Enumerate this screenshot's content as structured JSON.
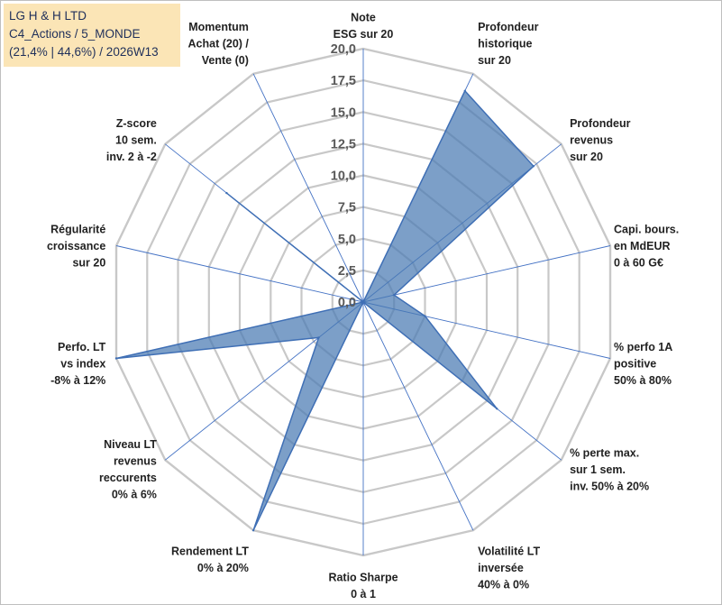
{
  "info_box": {
    "line1": "LG H & H LTD",
    "line2": "C4_Actions / 5_MONDE",
    "line3": "(21,4% | 44,6%) / 2026W13"
  },
  "colors": {
    "area_fill": "#4a7ab3",
    "area_stroke": "#3f6fb5",
    "grid": "#c8c8c8",
    "spoke": "#4472c4"
  },
  "chart_data": {
    "type": "radar",
    "title": "",
    "rlim": [
      0,
      20
    ],
    "tick_values": [
      0,
      2.5,
      5,
      7.5,
      10,
      12.5,
      15,
      17.5,
      20
    ],
    "tick_labels": [
      "0,0",
      "2,5",
      "5,0",
      "7,5",
      "10,0",
      "12,5",
      "15,0",
      "17,5",
      "20,0"
    ],
    "axes": [
      {
        "label": [
          "Note",
          "ESG sur 20"
        ],
        "value": 0
      },
      {
        "label": [
          "Profondeur",
          "historique",
          "sur 20"
        ],
        "value": 18.5
      },
      {
        "label": [
          "Profondeur",
          "revenus",
          "sur 20"
        ],
        "value": 17.2
      },
      {
        "label": [
          "Capi. bours.",
          "en MdEUR",
          "0 à 60 G€"
        ],
        "value": 2.5
      },
      {
        "label": [
          "% perfo 1A",
          "positive",
          "50% à 80%"
        ],
        "value": 5.0
      },
      {
        "label": [
          "% perte max.",
          "sur 1 sem.",
          "inv. 50% à 20%"
        ],
        "value": 13.5
      },
      {
        "label": [
          "Volatilité LT",
          "inversée",
          "40% à 0%"
        ],
        "value": 0
      },
      {
        "label": [
          "Ratio Sharpe",
          "0 à 1"
        ],
        "value": 0
      },
      {
        "label": [
          "Rendement LT",
          "0% à 20%"
        ],
        "value": 20.0
      },
      {
        "label": [
          "Niveau LT",
          "revenus",
          "reccurents",
          "0% à 6%"
        ],
        "value": 4.5
      },
      {
        "label": [
          "Perfo. LT",
          "vs index",
          "-8% à 12%"
        ],
        "value": 20.0
      },
      {
        "label": [
          "Régularité",
          "croissance",
          "sur 20"
        ],
        "value": 0
      },
      {
        "label": [
          "Z-score",
          "10 sem.",
          "inv. 2 à -2"
        ],
        "value": 13.8
      },
      {
        "label": [
          "Momentum",
          "Achat (20) /",
          "Vente (0)"
        ],
        "value": 0
      }
    ]
  }
}
